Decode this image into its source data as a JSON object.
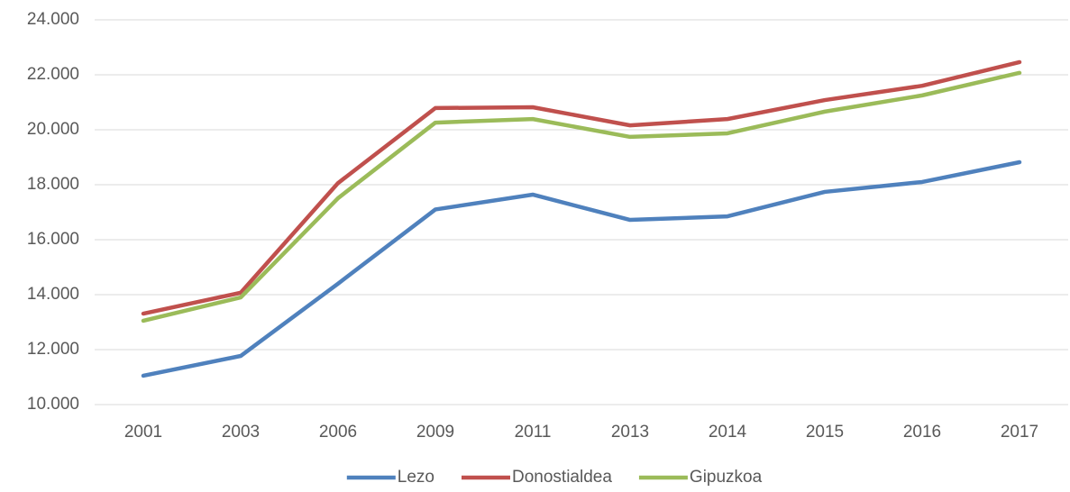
{
  "chart_data": {
    "type": "line",
    "categories": [
      "2001",
      "2003",
      "2006",
      "2009",
      "2011",
      "2013",
      "2014",
      "2015",
      "2016",
      "2017"
    ],
    "series": [
      {
        "name": "Lezo",
        "color": "#4f81bd",
        "values": [
          11050,
          11770,
          14400,
          17100,
          17640,
          16720,
          16850,
          17740,
          18100,
          18820
        ]
      },
      {
        "name": "Donostialdea",
        "color": "#c0504d",
        "values": [
          13310,
          14070,
          18060,
          20790,
          20820,
          20160,
          20390,
          21080,
          21600,
          22460
        ]
      },
      {
        "name": "Gipuzkoa",
        "color": "#9bbb59",
        "values": [
          13050,
          13900,
          17510,
          20260,
          20390,
          19740,
          19870,
          20660,
          21250,
          22070
        ]
      }
    ],
    "ylim": [
      10000,
      24000
    ],
    "yticks": [
      {
        "value": 10000,
        "label": "10.000"
      },
      {
        "value": 12000,
        "label": "12.000"
      },
      {
        "value": 14000,
        "label": "14.000"
      },
      {
        "value": 16000,
        "label": "16.000"
      },
      {
        "value": 18000,
        "label": "18.000"
      },
      {
        "value": 20000,
        "label": "20.000"
      },
      {
        "value": 22000,
        "label": "22.000"
      },
      {
        "value": 24000,
        "label": "24.000"
      }
    ],
    "grid": true,
    "legend": "bottom"
  }
}
